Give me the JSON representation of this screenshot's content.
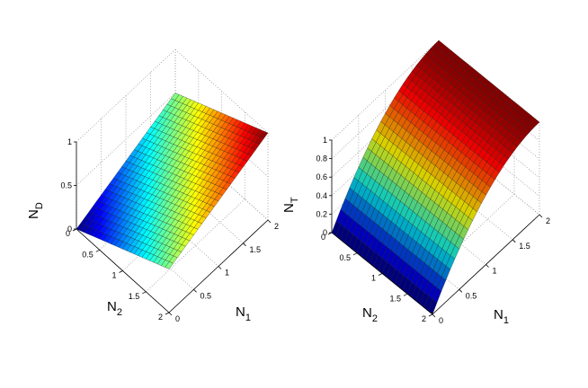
{
  "chart_data": [
    {
      "type": "surface",
      "surface_function": "N_D = (N1 + N2) / 4",
      "xlabel": {
        "main": "N",
        "sub": "1"
      },
      "ylabel": {
        "main": "N",
        "sub": "2"
      },
      "zlabel": {
        "main": "N",
        "sub": "D"
      },
      "x_ticks": [
        "0",
        "0.5",
        "1",
        "1.5",
        "2"
      ],
      "y_ticks": [
        "0",
        "0.5",
        "1",
        "1.5",
        "2"
      ],
      "z_ticks": [
        "0",
        "0.5",
        "1"
      ],
      "xlim": [
        0,
        2
      ],
      "ylim": [
        0,
        2
      ],
      "zlim": [
        0,
        1
      ],
      "colormap": "jet",
      "grid": true,
      "samples": {
        "x": [
          0,
          0.5,
          1,
          1.5,
          2
        ],
        "y": [
          0,
          0.5,
          1,
          1.5,
          2
        ],
        "z": [
          [
            0,
            0.125,
            0.25,
            0.375,
            0.5
          ],
          [
            0.125,
            0.25,
            0.375,
            0.5,
            0.625
          ],
          [
            0.25,
            0.375,
            0.5,
            0.625,
            0.75
          ],
          [
            0.375,
            0.5,
            0.625,
            0.75,
            0.875
          ],
          [
            0.5,
            0.625,
            0.75,
            0.875,
            1.0
          ]
        ]
      }
    },
    {
      "type": "surface",
      "surface_function": "N_T = 1 - (1 - N1/2)^2, constant in N2",
      "xlabel": {
        "main": "N",
        "sub": "1"
      },
      "ylabel": {
        "main": "N",
        "sub": "2"
      },
      "zlabel": {
        "main": "N",
        "sub": "T"
      },
      "x_ticks": [
        "0",
        "0.5",
        "1",
        "1.5",
        "2"
      ],
      "y_ticks": [
        "0",
        "0.5",
        "1",
        "1.5",
        "2"
      ],
      "z_ticks": [
        "0",
        "0.2",
        "0.4",
        "0.6",
        "0.8",
        "1"
      ],
      "xlim": [
        0,
        2
      ],
      "ylim": [
        0,
        2
      ],
      "zlim": [
        0,
        1
      ],
      "colormap": "jet",
      "grid": true,
      "samples": {
        "x": [
          0,
          0.5,
          1,
          1.5,
          2
        ],
        "z_by_x": [
          0,
          0.4375,
          0.75,
          0.9375,
          1.0
        ]
      }
    }
  ]
}
